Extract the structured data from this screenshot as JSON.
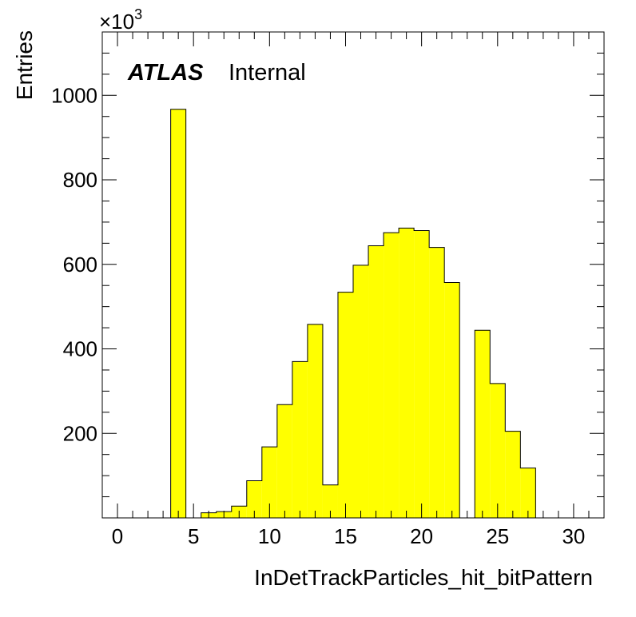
{
  "chart_data": {
    "type": "bar",
    "histogram": true,
    "bin_width": 1,
    "xlim": [
      -1,
      32
    ],
    "ylim": [
      0,
      1150
    ],
    "y_multiplier": "×10",
    "y_multiplier_exponent": "3",
    "xlabel": "InDetTrackParticles_hit_bitPattern",
    "ylabel": "Entries",
    "x_ticks": [
      "0",
      "5",
      "10",
      "15",
      "20",
      "25",
      "30"
    ],
    "x_tick_values": [
      0,
      5,
      10,
      15,
      20,
      25,
      30
    ],
    "y_ticks": [
      "200",
      "400",
      "600",
      "800",
      "1000"
    ],
    "y_tick_values": [
      200,
      400,
      600,
      800,
      1000
    ],
    "bins": [
      {
        "x": 4,
        "value": 967
      },
      {
        "x": 5,
        "value": 0
      },
      {
        "x": 6,
        "value": 12
      },
      {
        "x": 7,
        "value": 15
      },
      {
        "x": 8,
        "value": 28
      },
      {
        "x": 9,
        "value": 88
      },
      {
        "x": 10,
        "value": 168
      },
      {
        "x": 11,
        "value": 268
      },
      {
        "x": 12,
        "value": 370
      },
      {
        "x": 13,
        "value": 458
      },
      {
        "x": 14,
        "value": 78
      },
      {
        "x": 15,
        "value": 534
      },
      {
        "x": 16,
        "value": 598
      },
      {
        "x": 17,
        "value": 644
      },
      {
        "x": 18,
        "value": 675
      },
      {
        "x": 19,
        "value": 686
      },
      {
        "x": 20,
        "value": 680
      },
      {
        "x": 21,
        "value": 640
      },
      {
        "x": 22,
        "value": 557
      },
      {
        "x": 23,
        "value": 0
      },
      {
        "x": 24,
        "value": 444
      },
      {
        "x": 25,
        "value": 318
      },
      {
        "x": 26,
        "value": 205
      },
      {
        "x": 27,
        "value": 118
      }
    ],
    "fill_color": "#ffff00",
    "line_color": "#000000",
    "grid": false
  },
  "label": {
    "atlas": "ATLAS",
    "internal": "Internal"
  }
}
